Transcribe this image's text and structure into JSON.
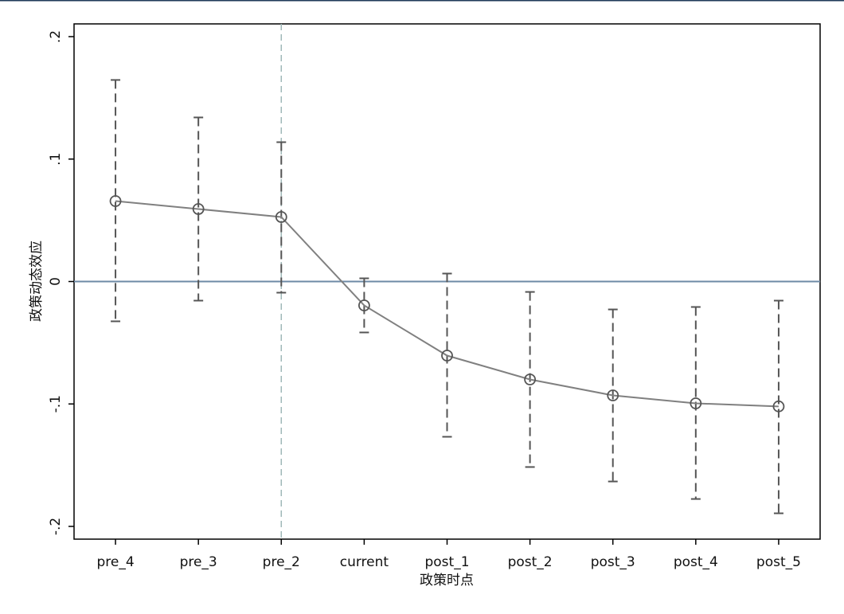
{
  "chart_data": {
    "type": "errorbar_line",
    "categories": [
      "pre_4",
      "pre_3",
      "pre_2",
      "current",
      "post_1",
      "post_2",
      "post_3",
      "post_4",
      "post_5"
    ],
    "series": [
      {
        "color": "#808080",
        "ci_color": "#555555",
        "values": [
          0.0657,
          0.0592,
          0.0527,
          -0.0195,
          -0.0605,
          -0.08,
          -0.093,
          -0.0995,
          -0.102
        ],
        "lower": [
          -0.0325,
          -0.0156,
          -0.0091,
          -0.0416,
          -0.1268,
          -0.1515,
          -0.1633,
          -0.1776,
          -0.1893
        ],
        "upper": [
          0.1646,
          0.134,
          0.1138,
          0.0026,
          0.0065,
          -0.0085,
          -0.0228,
          -0.0208,
          -0.0156
        ]
      }
    ],
    "ylim": [
      -0.2104,
      0.2104
    ],
    "yticks": [
      {
        "value": -0.2,
        "label": "-.2"
      },
      {
        "value": -0.1,
        "label": "-.1"
      },
      0,
      {
        "value": 0.1,
        "label": ".1"
      },
      {
        "value": 0.2,
        "label": ".2"
      }
    ],
    "hline": 0,
    "hline_color": "#6e8aa6",
    "vline": "pre_2",
    "vline_color": "#9fb8b8",
    "xlabel": "政策时点",
    "ylabel": "政策动态效应"
  }
}
